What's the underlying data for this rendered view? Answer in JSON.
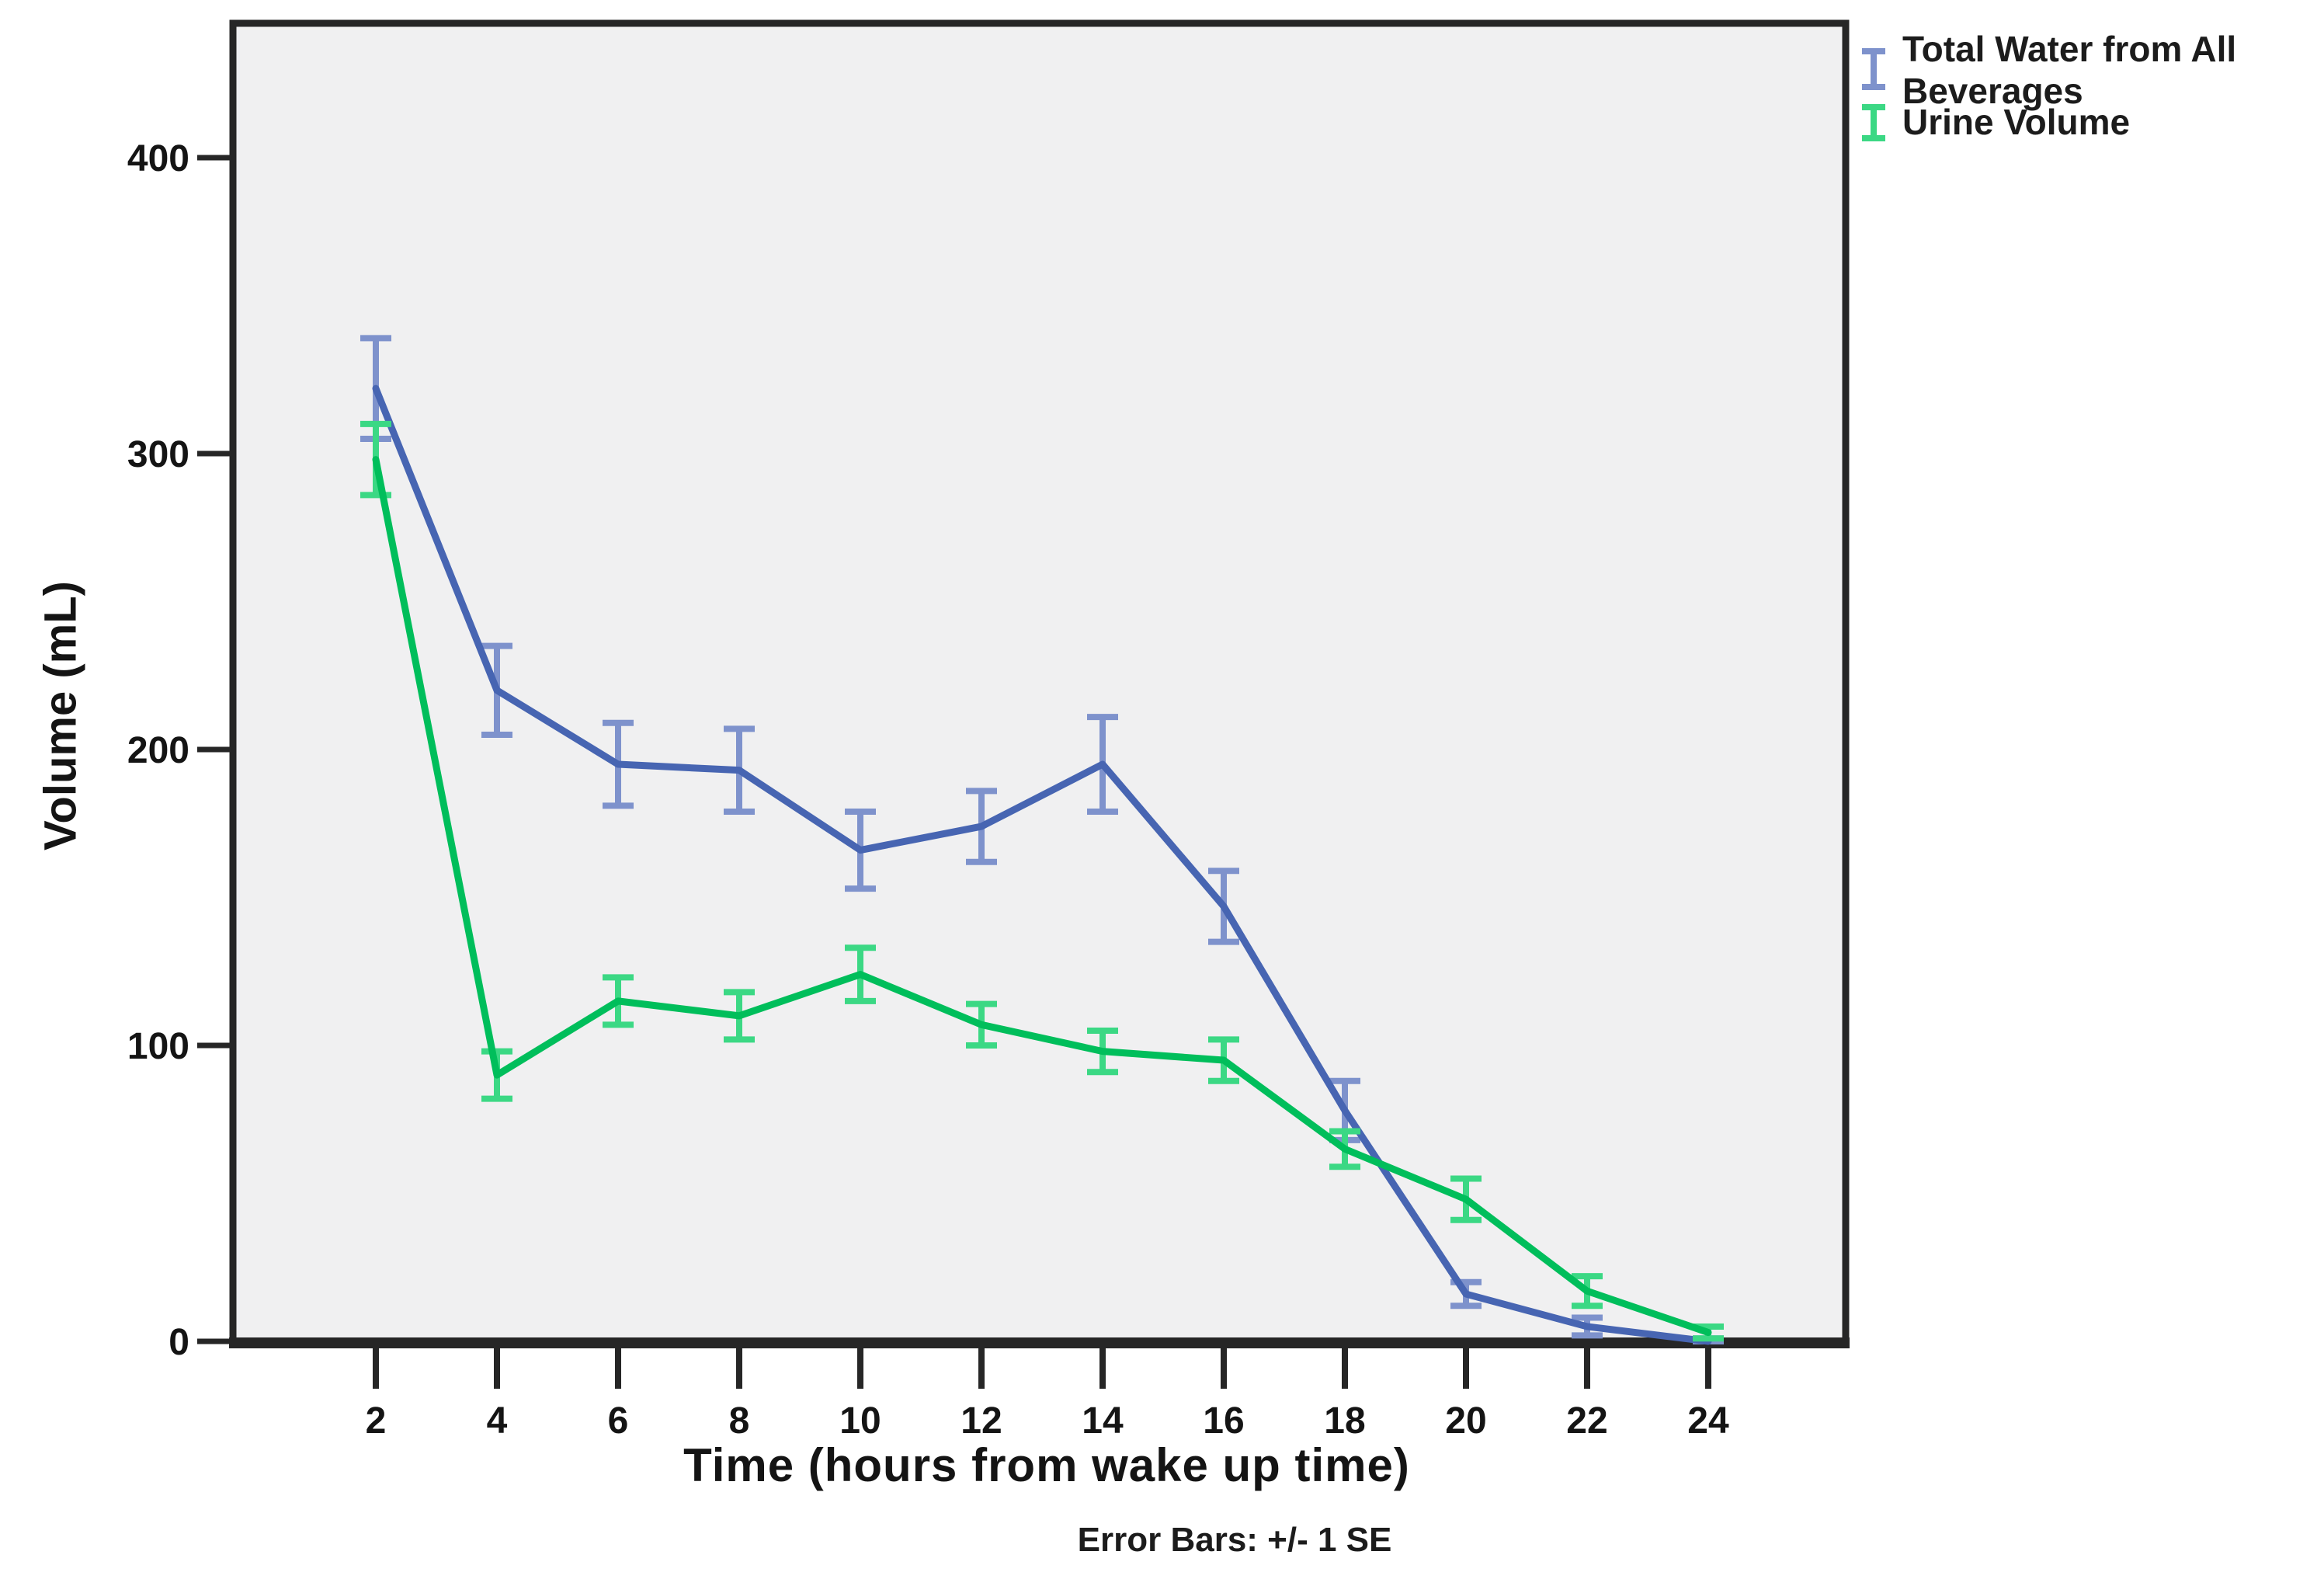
{
  "chart_data": {
    "type": "line",
    "title": "",
    "xlabel": "Time (hours from wake up time)",
    "ylabel": "Volume (mL)",
    "caption": "Error Bars: +/- 1 SE",
    "x": [
      2,
      4,
      6,
      8,
      10,
      12,
      14,
      16,
      18,
      20,
      22,
      24
    ],
    "x_tick_labels": [
      "2",
      "4",
      "6",
      "8",
      "10",
      "12",
      "14",
      "16",
      "18",
      "20",
      "22",
      "24"
    ],
    "y_ticks": [
      0,
      100,
      200,
      300,
      400
    ],
    "y_tick_labels": [
      "0",
      "100",
      "200",
      "300",
      "400"
    ],
    "xlim": [
      0.7,
      26.3
    ],
    "ylim": [
      0,
      445
    ],
    "grid": false,
    "legend_position": "top-right",
    "plot_bg": "#f0f0f1",
    "frame_color": "#262626",
    "tick_color": "#262626",
    "label_color": "#141414",
    "series": [
      {
        "name": "Total Water from All Beverages",
        "legend_lines": [
          "Total Water from All",
          "Beverages"
        ],
        "color": "#4765b2",
        "error_color": "#7e92cc",
        "values": [
          322,
          220,
          195,
          193,
          166,
          174,
          195,
          147,
          78,
          16,
          5,
          0
        ],
        "se": [
          17,
          15,
          14,
          14,
          13,
          12,
          16,
          12,
          10,
          4,
          3,
          1
        ]
      },
      {
        "name": "Urine Volume",
        "legend_lines": [
          "Urine Volume"
        ],
        "color": "#00be5b",
        "error_color": "#3bd884",
        "values": [
          298,
          90,
          115,
          110,
          124,
          107,
          98,
          95,
          65,
          48,
          17,
          3
        ],
        "se": [
          12,
          8,
          8,
          8,
          9,
          7,
          7,
          7,
          6,
          7,
          5,
          2
        ]
      }
    ]
  }
}
